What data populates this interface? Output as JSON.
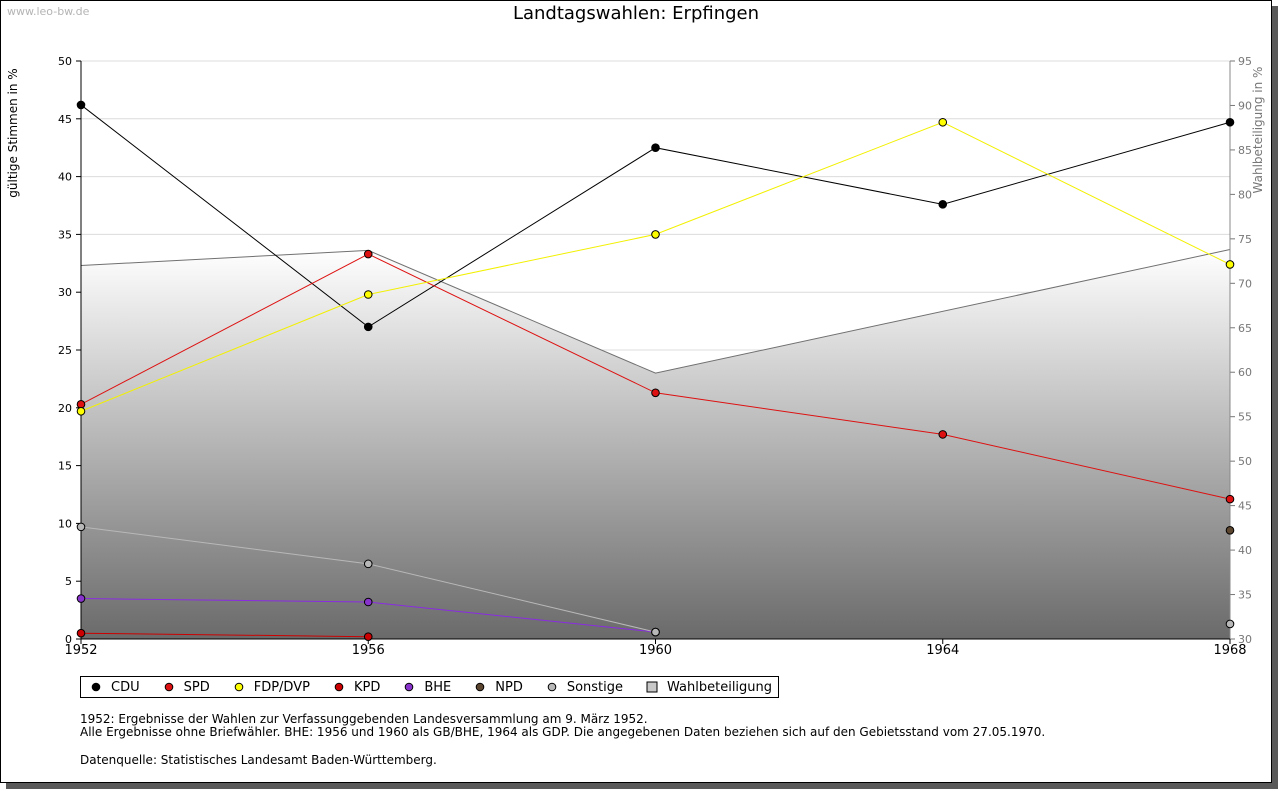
{
  "watermark": "www.leo-bw.de",
  "chart_data": {
    "type": "line",
    "title": "Landtagswahlen: Erpfingen",
    "x": [
      1952,
      1956,
      1960,
      1964,
      1968
    ],
    "xlim": [
      1952,
      1968
    ],
    "ylabel": "gültige Stimmen in %",
    "ylim": [
      0,
      50
    ],
    "yticks": [
      0,
      5,
      10,
      15,
      20,
      25,
      30,
      35,
      40,
      45,
      50
    ],
    "y2label": "Wahlbeteiligung in %",
    "y2lim": [
      30,
      95
    ],
    "y2ticks": [
      30,
      35,
      40,
      45,
      50,
      55,
      60,
      65,
      70,
      75,
      80,
      85,
      90,
      95
    ],
    "grid": true,
    "legend_position": "bottom",
    "series": [
      {
        "name": "CDU",
        "color": "#000000",
        "values": [
          46.2,
          27.0,
          42.5,
          37.6,
          44.7
        ]
      },
      {
        "name": "SPD",
        "color": "#dd1111",
        "values": [
          20.3,
          33.3,
          21.3,
          17.7,
          12.1
        ]
      },
      {
        "name": "FDP/DVP",
        "color": "#ffff00",
        "line_color": "#f2f000",
        "values": [
          19.7,
          29.8,
          35.0,
          44.7,
          32.4
        ]
      },
      {
        "name": "KPD",
        "color": "#cc0000",
        "values": [
          0.5,
          0.2,
          null,
          null,
          null
        ]
      },
      {
        "name": "BHE",
        "color": "#8833cc",
        "line_color": "#8a2be2",
        "values": [
          3.5,
          3.2,
          0.6,
          null,
          null
        ]
      },
      {
        "name": "NPD",
        "color": "#5c4630",
        "values": [
          null,
          null,
          null,
          null,
          9.4
        ]
      },
      {
        "name": "Sonstige",
        "color": "#b8b8b8",
        "values": [
          9.7,
          6.5,
          0.6,
          null,
          1.3
        ]
      },
      {
        "name": "Wahlbeteiligung",
        "color": "#c8c8c8",
        "axis": "right",
        "type": "area",
        "values": [
          72.0,
          73.7,
          59.9,
          null,
          73.8
        ]
      }
    ]
  },
  "notes": [
    "1952: Ergebnisse der Wahlen zur Verfassunggebenden Landesversammlung am 9. März 1952.",
    "Alle Ergebnisse ohne Briefwähler. BHE: 1956 und 1960 als GB/BHE, 1964 als GDP. Die angegebenen Daten beziehen sich auf den Gebietsstand vom 27.05.1970."
  ],
  "source": "Datenquelle: Statistisches Landesamt Baden-Württemberg."
}
